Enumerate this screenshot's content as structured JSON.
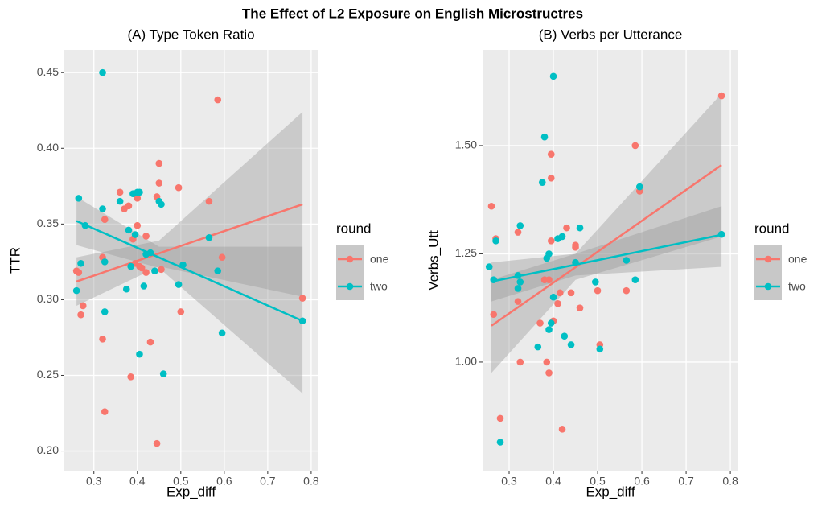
{
  "title": "The Effect of L2 Exposure on English Microstructres",
  "chart_data": [
    {
      "type": "scatter",
      "title": "(A) Type Token Ratio",
      "x_label": "Exp_diff",
      "y_label": "TTR",
      "legend_title": "round",
      "legend": "right",
      "grid": true,
      "xlim": [
        0.232,
        0.815
      ],
      "ylim": [
        0.187,
        0.465
      ],
      "xticks": [
        0.3,
        0.4,
        0.5,
        0.6,
        0.7,
        0.8
      ],
      "yticks": [
        {
          "value": 0.2,
          "label": "0.20"
        },
        0.25,
        {
          "value": 0.3,
          "label": "0.30"
        },
        0.35,
        {
          "value": 0.4,
          "label": "0.40"
        },
        0.45
      ],
      "series": [
        {
          "name": "one",
          "color": "#f8766d",
          "x": [
            0.26,
            0.265,
            0.27,
            0.275,
            0.32,
            0.32,
            0.325,
            0.325,
            0.36,
            0.37,
            0.38,
            0.385,
            0.39,
            0.395,
            0.4,
            0.4,
            0.405,
            0.41,
            0.42,
            0.42,
            0.43,
            0.445,
            0.445,
            0.45,
            0.45,
            0.455,
            0.495,
            0.5,
            0.565,
            0.585,
            0.595,
            0.78
          ],
          "y": [
            0.319,
            0.318,
            0.29,
            0.296,
            0.274,
            0.328,
            0.226,
            0.353,
            0.371,
            0.36,
            0.362,
            0.249,
            0.34,
            0.324,
            0.367,
            0.349,
            0.322,
            0.321,
            0.342,
            0.318,
            0.272,
            0.205,
            0.368,
            0.377,
            0.39,
            0.32,
            0.374,
            0.292,
            0.365,
            0.432,
            0.328,
            0.301
          ],
          "fit": {
            "x": [
              0.26,
              0.45,
              0.78
            ],
            "y": [
              0.312,
              0.3306,
              0.363
            ],
            "lower": [
              0.296,
              0.322,
              0.302
            ],
            "upper": [
              0.328,
              0.339,
              0.424
            ]
          }
        },
        {
          "name": "two",
          "color": "#00bfc4",
          "x": [
            0.26,
            0.265,
            0.27,
            0.28,
            0.32,
            0.32,
            0.325,
            0.325,
            0.36,
            0.375,
            0.38,
            0.385,
            0.39,
            0.395,
            0.4,
            0.405,
            0.405,
            0.415,
            0.42,
            0.43,
            0.44,
            0.45,
            0.455,
            0.46,
            0.495,
            0.505,
            0.565,
            0.585,
            0.595,
            0.78
          ],
          "y": [
            0.306,
            0.367,
            0.324,
            0.349,
            0.36,
            0.45,
            0.325,
            0.292,
            0.365,
            0.307,
            0.346,
            0.322,
            0.37,
            0.343,
            0.371,
            0.371,
            0.264,
            0.309,
            0.33,
            0.331,
            0.319,
            0.365,
            0.363,
            0.251,
            0.31,
            0.323,
            0.341,
            0.319,
            0.278,
            0.286
          ],
          "fit": {
            "x": [
              0.26,
              0.45,
              0.78
            ],
            "y": [
              0.352,
              0.3279,
              0.286
            ],
            "lower": [
              0.336,
              0.321,
              0.238
            ],
            "upper": [
              0.368,
              0.335,
              0.335
            ]
          }
        }
      ]
    },
    {
      "type": "scatter",
      "title": "(B) Verbs per Utterance",
      "x_label": "Exp_diff",
      "y_label": "Verbs_Utt",
      "legend_title": "round",
      "legend": "right",
      "grid": true,
      "xlim": [
        0.24,
        0.818
      ],
      "ylim": [
        0.749,
        1.721
      ],
      "xticks": [
        0.3,
        0.4,
        0.5,
        0.6,
        0.7,
        0.8
      ],
      "yticks": [
        {
          "value": 1.0,
          "label": "1.00"
        },
        1.25,
        {
          "value": 1.5,
          "label": "1.50"
        }
      ],
      "series": [
        {
          "name": "one",
          "color": "#f8766d",
          "x": [
            0.26,
            0.265,
            0.27,
            0.28,
            0.32,
            0.32,
            0.325,
            0.37,
            0.38,
            0.385,
            0.39,
            0.39,
            0.395,
            0.395,
            0.395,
            0.4,
            0.41,
            0.415,
            0.42,
            0.43,
            0.44,
            0.45,
            0.45,
            0.46,
            0.5,
            0.505,
            0.565,
            0.585,
            0.595,
            0.78
          ],
          "y": [
            1.36,
            1.11,
            1.285,
            0.87,
            1.14,
            1.3,
            1.0,
            1.09,
            1.19,
            1.0,
            0.975,
            1.19,
            1.425,
            1.48,
            1.28,
            1.095,
            1.135,
            1.16,
            0.845,
            1.31,
            1.16,
            1.27,
            1.265,
            1.125,
            1.165,
            1.04,
            1.165,
            1.5,
            1.395,
            1.615
          ],
          "fit": {
            "x": [
              0.26,
              0.45,
              0.78
            ],
            "y": [
              1.084,
              1.219,
              1.455
            ],
            "lower": [
              0.975,
              1.19,
              1.29
            ],
            "upper": [
              1.19,
              1.25,
              1.62
            ]
          }
        },
        {
          "name": "two",
          "color": "#00bfc4",
          "x": [
            0.255,
            0.265,
            0.27,
            0.28,
            0.32,
            0.32,
            0.325,
            0.325,
            0.365,
            0.375,
            0.38,
            0.385,
            0.39,
            0.39,
            0.395,
            0.4,
            0.4,
            0.41,
            0.42,
            0.425,
            0.44,
            0.45,
            0.46,
            0.495,
            0.505,
            0.565,
            0.585,
            0.595,
            0.78
          ],
          "y": [
            1.22,
            1.19,
            1.28,
            0.815,
            1.17,
            1.2,
            1.315,
            1.185,
            1.035,
            1.415,
            1.52,
            1.24,
            1.075,
            1.25,
            1.09,
            1.66,
            1.15,
            1.285,
            1.29,
            1.06,
            1.04,
            1.23,
            1.31,
            1.185,
            1.03,
            1.235,
            1.19,
            1.405,
            1.295
          ],
          "fit": {
            "x": [
              0.26,
              0.45,
              0.78
            ],
            "y": [
              1.186,
              1.225,
              1.294
            ],
            "lower": [
              1.14,
              1.2,
              1.22
            ],
            "upper": [
              1.23,
              1.25,
              1.36
            ]
          }
        }
      ]
    }
  ]
}
